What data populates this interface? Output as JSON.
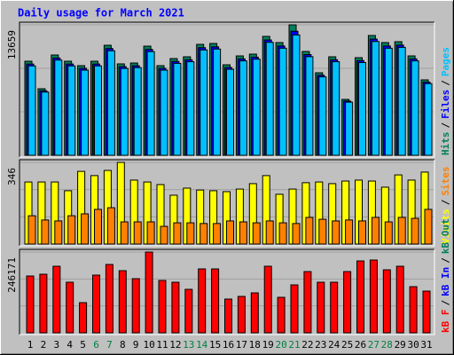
{
  "title": "Daily usage for March 2021",
  "legend_separator": "/",
  "weekends": [
    "6",
    "7",
    "13",
    "14",
    "20",
    "21",
    "27",
    "28"
  ],
  "weekend_color": "#008040",
  "chart_data": [
    {
      "type": "bar",
      "ylim": [
        0,
        13659
      ],
      "yticks": [
        13659
      ],
      "series": [
        {
          "name": "Hits",
          "color": "#00805c",
          "values": [
            9850,
            6969,
            10500,
            9850,
            9385,
            9850,
            11522,
            9571,
            9664,
            11429,
            9385,
            10128,
            10314,
            11615,
            11708,
            9478,
            10407,
            10593,
            12451,
            11801,
            13659,
            10871,
            8641,
            10314,
            5854,
            10221,
            12544,
            11801,
            11894,
            10407,
            7898
          ]
        },
        {
          "name": "Files",
          "color": "#0000ff",
          "values": [
            9555,
            6760,
            10185,
            9555,
            9103,
            9555,
            11176,
            9284,
            9374,
            11086,
            9103,
            9824,
            10005,
            11267,
            11357,
            9194,
            10095,
            10275,
            12077,
            11447,
            12990,
            10545,
            8382,
            10005,
            5678,
            9914,
            12168,
            11447,
            11537,
            10095,
            7661
          ]
        },
        {
          "name": "Pages",
          "color": "#00c0ff",
          "values": [
            9358,
            6621,
            9975,
            9358,
            8916,
            9358,
            10946,
            9092,
            9181,
            10858,
            8916,
            9622,
            9798,
            11034,
            11123,
            9004,
            9887,
            10063,
            11828,
            11211,
            12600,
            10327,
            8209,
            9798,
            5561,
            9710,
            11917,
            11211,
            11299,
            9887,
            7503
          ]
        }
      ]
    },
    {
      "type": "bar",
      "ylim": [
        0,
        346
      ],
      "yticks": [
        346
      ],
      "series": [
        {
          "name": "Visits",
          "color": "#ffff00",
          "values": [
            263,
            263,
            263,
            226,
            308,
            290,
            312,
            346,
            271,
            263,
            252,
            207,
            237,
            229,
            226,
            222,
            233,
            256,
            290,
            211,
            233,
            260,
            263,
            256,
            267,
            271,
            267,
            241,
            293,
            271,
            305
          ]
        },
        {
          "name": "Sites",
          "color": "#ff8000",
          "values": [
            120,
            102,
            98,
            120,
            128,
            147,
            154,
            94,
            94,
            94,
            75,
            90,
            90,
            87,
            87,
            98,
            94,
            90,
            98,
            90,
            87,
            113,
            105,
            98,
            102,
            98,
            113,
            94,
            113,
            109,
            147
          ]
        }
      ]
    },
    {
      "type": "bar",
      "ylim": [
        0,
        246171
      ],
      "yticks": [
        246171
      ],
      "categories": [
        "1",
        "2",
        "3",
        "4",
        "5",
        "6",
        "7",
        "8",
        "9",
        "10",
        "11",
        "12",
        "13",
        "14",
        "15",
        "16",
        "17",
        "18",
        "19",
        "20",
        "21",
        "22",
        "23",
        "24",
        "25",
        "26",
        "27",
        "28",
        "29",
        "30",
        "31"
      ],
      "series": [
        {
          "name": "kB F",
          "color": "#ff0000",
          "values": [
            173120,
            178530,
            202875,
            154185,
            91970,
            175825,
            208285,
            189350,
            165005,
            246171,
            159595,
            154185,
            132545,
            194760,
            194760,
            102790,
            110905,
            121725,
            202875,
            108200,
            146070,
            186645,
            154185,
            154185,
            186645,
            219105,
            221810,
            192055,
            202875,
            140660,
            127135
          ]
        },
        {
          "name": "kB In",
          "color": "#0000ff",
          "values": [
            0,
            0,
            0,
            0,
            0,
            0,
            0,
            0,
            0,
            0,
            0,
            0,
            0,
            0,
            0,
            0,
            0,
            0,
            0,
            0,
            0,
            0,
            0,
            0,
            0,
            0,
            0,
            0,
            0,
            0,
            0
          ]
        },
        {
          "name": "kB Out",
          "color": "#00805c",
          "values": [
            0,
            0,
            0,
            0,
            0,
            0,
            0,
            0,
            0,
            0,
            0,
            0,
            0,
            0,
            0,
            0,
            0,
            0,
            0,
            0,
            0,
            0,
            0,
            0,
            0,
            0,
            0,
            0,
            0,
            0,
            0
          ]
        }
      ]
    }
  ]
}
